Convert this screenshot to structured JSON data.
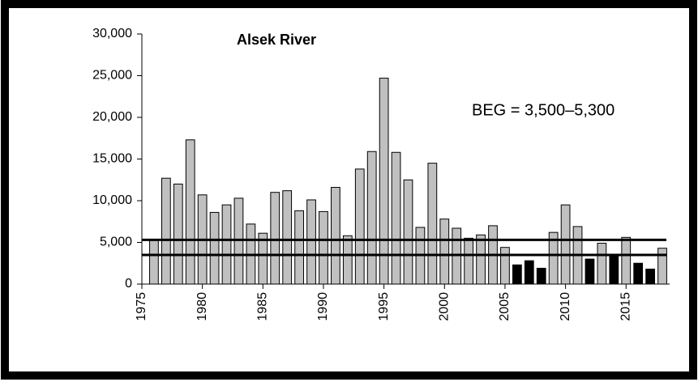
{
  "chart_data": {
    "type": "bar",
    "title": "Alsek River",
    "annotations": [
      "BEG = 3,500–5,300"
    ],
    "x": [
      1976,
      1977,
      1978,
      1979,
      1980,
      1981,
      1982,
      1983,
      1984,
      1985,
      1986,
      1987,
      1988,
      1989,
      1990,
      1991,
      1992,
      1993,
      1994,
      1995,
      1996,
      1997,
      1998,
      1999,
      2000,
      2001,
      2002,
      2003,
      2004,
      2005,
      2006,
      2007,
      2008,
      2009,
      2010,
      2011,
      2012,
      2013,
      2014,
      2015,
      2016,
      2017,
      2018
    ],
    "values": [
      5300,
      12700,
      12000,
      17300,
      10700,
      8600,
      9500,
      10300,
      7200,
      6100,
      11000,
      11200,
      8800,
      10100,
      8700,
      11600,
      5800,
      13800,
      15900,
      24700,
      15800,
      12500,
      6800,
      14500,
      7800,
      6700,
      5500,
      5900,
      7000,
      4400,
      2300,
      2800,
      1900,
      6200,
      9500,
      6900,
      3000,
      4900,
      3400,
      5600,
      2500,
      1800,
      4300
    ],
    "bar_colors": [
      "#c0c0c0",
      "#c0c0c0",
      "#c0c0c0",
      "#c0c0c0",
      "#c0c0c0",
      "#c0c0c0",
      "#c0c0c0",
      "#c0c0c0",
      "#c0c0c0",
      "#c0c0c0",
      "#c0c0c0",
      "#c0c0c0",
      "#c0c0c0",
      "#c0c0c0",
      "#c0c0c0",
      "#c0c0c0",
      "#c0c0c0",
      "#c0c0c0",
      "#c0c0c0",
      "#c0c0c0",
      "#c0c0c0",
      "#c0c0c0",
      "#c0c0c0",
      "#c0c0c0",
      "#c0c0c0",
      "#c0c0c0",
      "#c0c0c0",
      "#c0c0c0",
      "#c0c0c0",
      "#c0c0c0",
      "#000000",
      "#000000",
      "#000000",
      "#c0c0c0",
      "#c0c0c0",
      "#c0c0c0",
      "#000000",
      "#c0c0c0",
      "#000000",
      "#c0c0c0",
      "#000000",
      "#000000",
      "#c0c0c0"
    ],
    "reference_lines": [
      3500,
      5300
    ],
    "xlim": [
      1975,
      2018.6
    ],
    "xticks": [
      1975,
      1980,
      1985,
      1990,
      1995,
      2000,
      2005,
      2010,
      2015
    ],
    "ylim": [
      0,
      30000
    ],
    "yticks": [
      0,
      {
        "value": 5000,
        "label": "5,000"
      },
      {
        "value": 10000,
        "label": "10,000"
      },
      {
        "value": 15000,
        "label": "15,000"
      },
      {
        "value": 20000,
        "label": "20,000"
      },
      {
        "value": 25000,
        "label": "25,000"
      },
      {
        "value": 30000,
        "label": "30,000"
      }
    ]
  }
}
